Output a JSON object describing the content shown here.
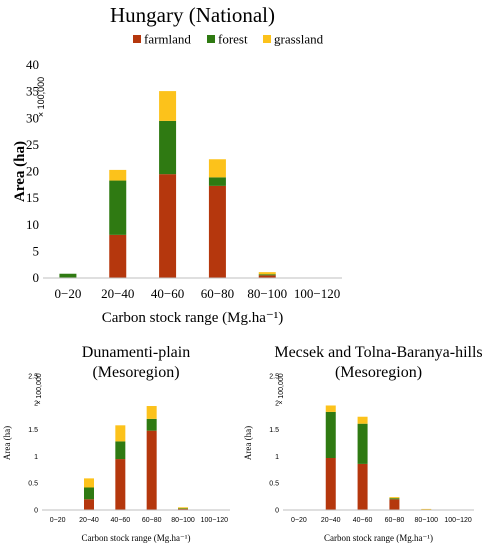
{
  "colors": {
    "farmland": "#b5370d",
    "forest": "#2f7a12",
    "grassland": "#fcc21b"
  },
  "legend": [
    "farmland",
    "forest",
    "grassland"
  ],
  "chart_data": [
    {
      "type": "bar",
      "stacked": true,
      "title": "Hungary (National)",
      "xlabel": "Carbon stock range (Mg.ha⁻¹)",
      "ylabel": "Area (ha)",
      "y_multiplier": "× 100,000",
      "ylim": [
        0,
        40
      ],
      "yticks": [
        "0",
        "5",
        "10",
        "15",
        "20",
        "25",
        "30",
        "35",
        "40"
      ],
      "categories": [
        "0−20",
        "20−40",
        "40−60",
        "60−80",
        "80−100",
        "100−120"
      ],
      "series": [
        {
          "name": "farmland",
          "values": [
            0.1,
            8.1,
            19.5,
            17.3,
            0.5,
            0
          ]
        },
        {
          "name": "forest",
          "values": [
            0.7,
            10.2,
            10.0,
            1.6,
            0.2,
            0
          ]
        },
        {
          "name": "grassland",
          "values": [
            0,
            2.0,
            5.6,
            3.4,
            0.4,
            0
          ]
        }
      ],
      "legend_position": "top"
    },
    {
      "type": "bar",
      "stacked": true,
      "title": "Dunamenti-plain",
      "subtitle": "(Mesoregion)",
      "xlabel": "Carbon stock range (Mg.ha⁻¹)",
      "ylabel": "Area (ha)",
      "y_multiplier": "× 100,000",
      "ylim": [
        0,
        2.5
      ],
      "yticks": [
        "0",
        "0.5",
        "1",
        "1.5",
        "2",
        "2.5"
      ],
      "categories": [
        "0−20",
        "20−40",
        "40−60",
        "60−80",
        "80−100",
        "100−120"
      ],
      "series": [
        {
          "name": "farmland",
          "values": [
            0,
            0.2,
            0.95,
            1.48,
            0.02,
            0
          ]
        },
        {
          "name": "forest",
          "values": [
            0,
            0.22,
            0.33,
            0.22,
            0.01,
            0
          ]
        },
        {
          "name": "grassland",
          "values": [
            0,
            0.17,
            0.3,
            0.24,
            0.02,
            0
          ]
        }
      ]
    },
    {
      "type": "bar",
      "stacked": true,
      "title": "Mecsek and Tolna-Baranya-hills",
      "subtitle": "(Mesoregion)",
      "xlabel": "Carbon stock range (Mg.ha⁻¹)",
      "ylabel": "Area (ha)",
      "y_multiplier": "× 100,000",
      "ylim": [
        0,
        2.5
      ],
      "yticks": [
        "0",
        "0.5",
        "1",
        "1.5",
        "2",
        "2.5"
      ],
      "categories": [
        "0−20",
        "20−40",
        "40−60",
        "60−80",
        "80−100",
        "100−120"
      ],
      "series": [
        {
          "name": "farmland",
          "values": [
            0,
            0.97,
            0.86,
            0.2,
            0,
            0
          ]
        },
        {
          "name": "forest",
          "values": [
            0,
            0.86,
            0.75,
            0.02,
            0.01,
            0
          ]
        },
        {
          "name": "grassland",
          "values": [
            0,
            0.12,
            0.13,
            0.02,
            0.01,
            0
          ]
        }
      ]
    }
  ]
}
